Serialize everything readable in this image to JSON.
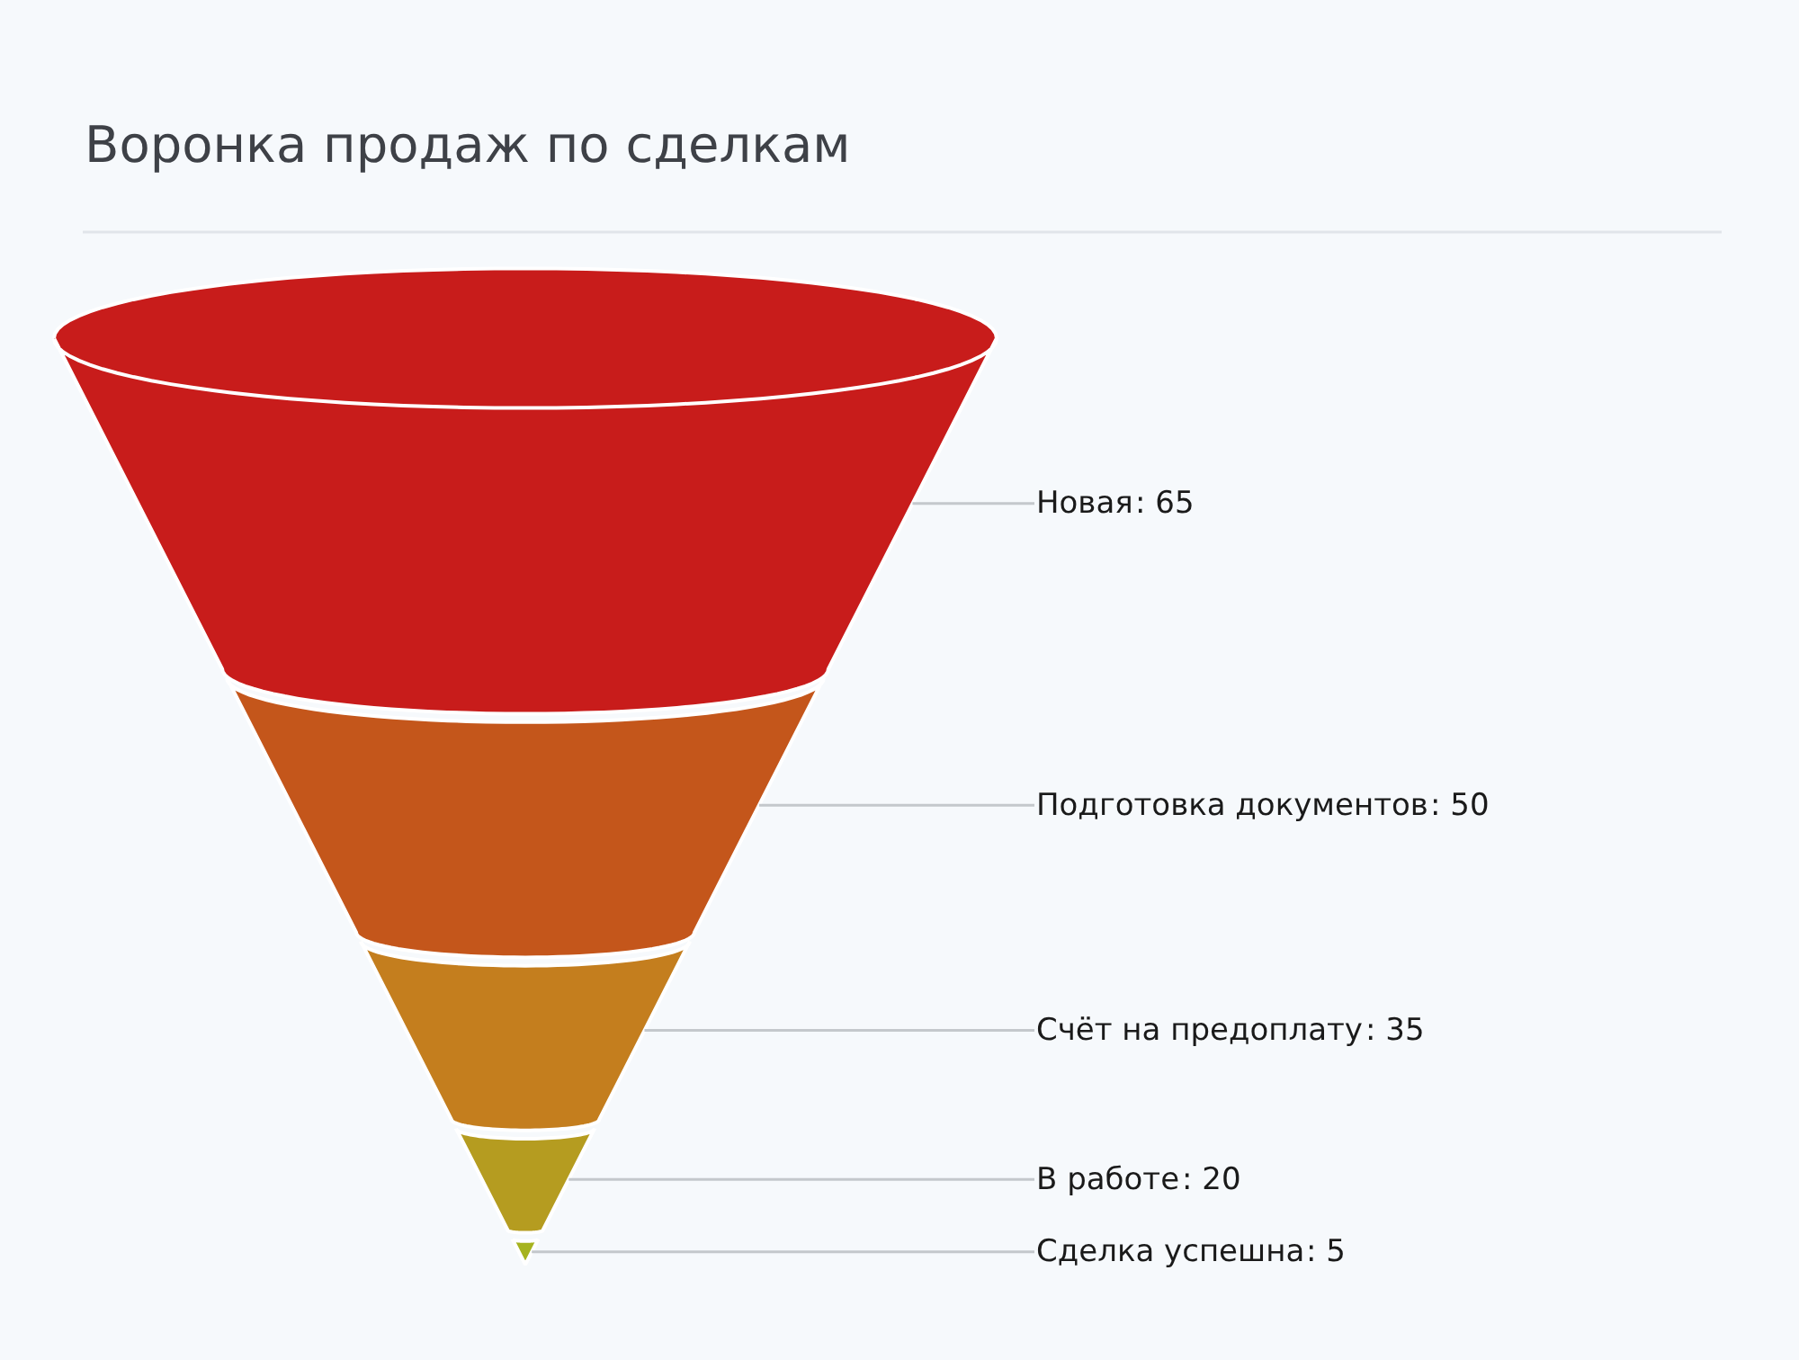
{
  "chart_data": {
    "type": "other",
    "title": "Воронка продаж по сделкам",
    "categories": [
      "Новая",
      "Подготовка документов",
      "Счёт на предоплату",
      "В работе",
      "Сделка успешна"
    ],
    "values": [
      65,
      50,
      35,
      20,
      5
    ],
    "value_labels": [
      ": 65",
      ": 50",
      ": 35",
      ": 20",
      ": 5"
    ],
    "colors": [
      "#c81c1b",
      "#c4561b",
      "#c47e1e",
      "#b59c20",
      "#a6b31e"
    ]
  }
}
